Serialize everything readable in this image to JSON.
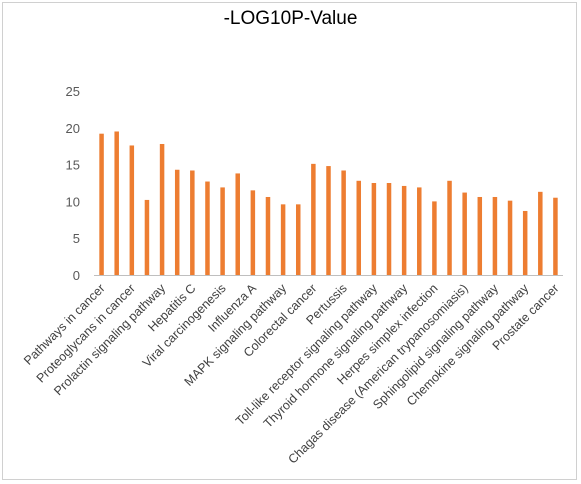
{
  "chart_data": {
    "type": "bar",
    "title": "-LOG10P-Value",
    "xlabel": "",
    "ylabel": "",
    "ylim": [
      0,
      25
    ],
    "yticks": [
      0,
      5,
      10,
      15,
      20,
      25
    ],
    "grid": true,
    "legend": "none",
    "bar_color": "#ED7D31",
    "axis_color": "#bfbfbf",
    "categories": [
      "Pathways in cancer",
      "Proteoglycans in cancer",
      "Prolactin signaling pathway",
      "Hepatitis C",
      "Viral carcinogenesis",
      "Influenza A",
      "MAPK signaling pathway",
      "Colorectal cancer",
      "Pertussis",
      "Toll-like receptor signaling pathway",
      "Thyroid hormone signaling pathway",
      "Herpes simplex infection",
      "Chagas disease (American trypanosomiasis)",
      "Sphingolipid signaling pathway",
      "Chemokine signaling pathway",
      "Prostate cancer"
    ],
    "bar_values": [
      19.2,
      19.5,
      17.6,
      10.2,
      17.8,
      14.3,
      14.2,
      12.7,
      11.9,
      13.8,
      11.5,
      10.6,
      9.6,
      9.6,
      15.1,
      14.8,
      14.2,
      12.8,
      12.5,
      12.5,
      12.1,
      11.9,
      10.0,
      12.8,
      11.2,
      10.6,
      10.6,
      10.1,
      8.7,
      11.3,
      10.5
    ],
    "label_every": 2
  }
}
